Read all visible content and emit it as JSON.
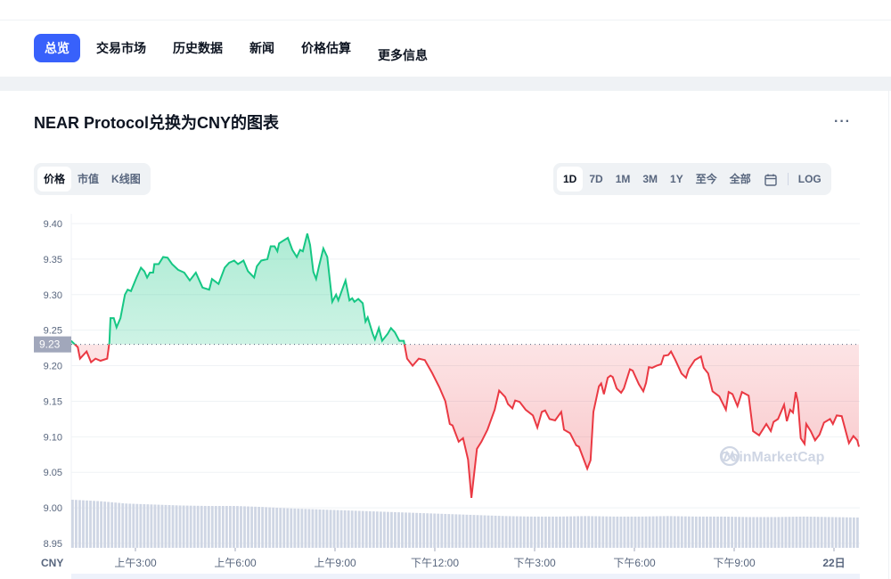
{
  "nav": {
    "tabs": [
      {
        "label": "总览",
        "active": true
      },
      {
        "label": "交易市场"
      },
      {
        "label": "历史数据"
      },
      {
        "label": "新闻"
      },
      {
        "label": "价格估算"
      },
      {
        "label": "更多信息"
      }
    ]
  },
  "card": {
    "title": "NEAR Protocol兑换为CNY的图表",
    "more_icon": "more-horizontal-icon"
  },
  "chart_type_tabs": [
    {
      "label": "价格",
      "active": true
    },
    {
      "label": "市值"
    },
    {
      "label": "K线图"
    }
  ],
  "range_tabs": [
    {
      "label": "1D",
      "active": true
    },
    {
      "label": "7D"
    },
    {
      "label": "1M"
    },
    {
      "label": "3M"
    },
    {
      "label": "1Y"
    },
    {
      "label": "至今"
    },
    {
      "label": "全部"
    }
  ],
  "calendar_icon": "calendar-icon",
  "log_label": "LOG",
  "colors": {
    "accent": "#3861fb",
    "up": "#16c784",
    "down": "#ea3943",
    "volume": "#cfd6e4"
  },
  "watermark": "CoinMarketCap",
  "chart_data": {
    "type": "line",
    "currency_label": "CNY",
    "baseline": {
      "value": 9.23,
      "label": "9.23"
    },
    "ylim": [
      8.95,
      9.4
    ],
    "yticks": [
      "9.40",
      "9.35",
      "9.30",
      "9.25",
      "9.20",
      "9.15",
      "9.10",
      "9.05",
      "9.00",
      "8.95"
    ],
    "xticks": [
      "上午3:00",
      "上午6:00",
      "上午9:00",
      "下午12:00",
      "下午3:00",
      "下午6:00",
      "下午9:00",
      "22日"
    ],
    "grid": true,
    "points": [
      [
        "01:04",
        9.235
      ],
      [
        "01:16",
        9.226
      ],
      [
        "01:20",
        9.21
      ],
      [
        "01:32",
        9.22
      ],
      [
        "01:40",
        9.205
      ],
      [
        "01:48",
        9.21
      ],
      [
        "01:57",
        9.207
      ],
      [
        "02:09",
        9.21
      ],
      [
        "02:13",
        9.233
      ],
      [
        "02:15",
        9.267
      ],
      [
        "02:21",
        9.267
      ],
      [
        "02:26",
        9.254
      ],
      [
        "02:33",
        9.267
      ],
      [
        "02:41",
        9.3
      ],
      [
        "02:46",
        9.307
      ],
      [
        "02:52",
        9.305
      ],
      [
        "03:02",
        9.324
      ],
      [
        "03:10",
        9.338
      ],
      [
        "03:16",
        9.333
      ],
      [
        "03:21",
        9.324
      ],
      [
        "03:26",
        9.331
      ],
      [
        "03:32",
        9.331
      ],
      [
        "03:34",
        9.343
      ],
      [
        "03:42",
        9.343
      ],
      [
        "03:50",
        9.353
      ],
      [
        "03:58",
        9.352
      ],
      [
        "04:06",
        9.343
      ],
      [
        "04:17",
        9.335
      ],
      [
        "04:28",
        9.331
      ],
      [
        "04:38",
        9.32
      ],
      [
        "04:49",
        9.331
      ],
      [
        "05:01",
        9.31
      ],
      [
        "05:13",
        9.307
      ],
      [
        "05:18",
        9.322
      ],
      [
        "05:30",
        9.315
      ],
      [
        "05:41",
        9.338
      ],
      [
        "05:49",
        9.345
      ],
      [
        "05:58",
        9.348
      ],
      [
        "06:05",
        9.343
      ],
      [
        "06:15",
        9.348
      ],
      [
        "06:23",
        9.333
      ],
      [
        "06:34",
        9.324
      ],
      [
        "06:39",
        9.34
      ],
      [
        "06:47",
        9.348
      ],
      [
        "06:58",
        9.35
      ],
      [
        "07:04",
        9.368
      ],
      [
        "07:11",
        9.368
      ],
      [
        "07:16",
        9.361
      ],
      [
        "07:19",
        9.372
      ],
      [
        "07:27",
        9.376
      ],
      [
        "07:35",
        9.38
      ],
      [
        "07:43",
        9.363
      ],
      [
        "07:51",
        9.353
      ],
      [
        "07:57",
        9.363
      ],
      [
        "08:02",
        9.361
      ],
      [
        "08:10",
        9.386
      ],
      [
        "08:15",
        9.37
      ],
      [
        "08:21",
        9.332
      ],
      [
        "08:26",
        9.322
      ],
      [
        "08:31",
        9.34
      ],
      [
        "08:39",
        9.365
      ],
      [
        "08:46",
        9.353
      ],
      [
        "08:55",
        9.29
      ],
      [
        "09:02",
        9.3
      ],
      [
        "09:06",
        9.292
      ],
      [
        "09:19",
        9.32
      ],
      [
        "09:26",
        9.292
      ],
      [
        "09:31",
        9.295
      ],
      [
        "09:35",
        9.29
      ],
      [
        "09:42",
        9.294
      ],
      [
        "09:50",
        9.288
      ],
      [
        "09:55",
        9.262
      ],
      [
        "09:59",
        9.268
      ],
      [
        "10:08",
        9.245
      ],
      [
        "10:12",
        9.237
      ],
      [
        "10:19",
        9.253
      ],
      [
        "10:25",
        9.235
      ],
      [
        "10:35",
        9.245
      ],
      [
        "10:41",
        9.253
      ],
      [
        "10:48",
        9.247
      ],
      [
        "10:56",
        9.235
      ],
      [
        "11:04",
        9.235
      ],
      [
        "11:10",
        9.21
      ],
      [
        "11:20",
        9.2
      ],
      [
        "11:31",
        9.21
      ],
      [
        "11:42",
        9.208
      ],
      [
        "11:55",
        9.19
      ],
      [
        "12:08",
        9.17
      ],
      [
        "12:19",
        9.15
      ],
      [
        "12:27",
        9.118
      ],
      [
        "12:32",
        9.116
      ],
      [
        "12:43",
        9.093
      ],
      [
        "12:51",
        9.098
      ],
      [
        "13:00",
        9.068
      ],
      [
        "13:06",
        9.014
      ],
      [
        "13:16",
        9.083
      ],
      [
        "13:24",
        9.093
      ],
      [
        "13:35",
        9.11
      ],
      [
        "13:48",
        9.138
      ],
      [
        "13:56",
        9.165
      ],
      [
        "14:07",
        9.156
      ],
      [
        "14:12",
        9.146
      ],
      [
        "14:20",
        9.14
      ],
      [
        "14:25",
        9.151
      ],
      [
        "14:33",
        9.149
      ],
      [
        "14:44",
        9.138
      ],
      [
        "14:57",
        9.13
      ],
      [
        "15:05",
        9.113
      ],
      [
        "15:13",
        9.135
      ],
      [
        "15:19",
        9.137
      ],
      [
        "15:27",
        9.125
      ],
      [
        "15:37",
        9.123
      ],
      [
        "15:48",
        9.135
      ],
      [
        "15:53",
        9.11
      ],
      [
        "16:04",
        9.105
      ],
      [
        "16:15",
        9.088
      ],
      [
        "16:20",
        9.086
      ],
      [
        "16:35",
        9.055
      ],
      [
        "16:41",
        9.067
      ],
      [
        "16:46",
        9.135
      ],
      [
        "16:56",
        9.171
      ],
      [
        "17:00",
        9.175
      ],
      [
        "17:05",
        9.16
      ],
      [
        "17:12",
        9.183
      ],
      [
        "17:17",
        9.186
      ],
      [
        "17:21",
        9.184
      ],
      [
        "17:28",
        9.168
      ],
      [
        "17:36",
        9.162
      ],
      [
        "17:41",
        9.168
      ],
      [
        "17:52",
        9.195
      ],
      [
        "17:57",
        9.193
      ],
      [
        "18:08",
        9.174
      ],
      [
        "18:16",
        9.164
      ],
      [
        "18:21",
        9.176
      ],
      [
        "18:26",
        9.198
      ],
      [
        "18:32",
        9.197
      ],
      [
        "18:40",
        9.2
      ],
      [
        "18:48",
        9.202
      ],
      [
        "18:53",
        9.214
      ],
      [
        "19:01",
        9.215
      ],
      [
        "19:06",
        9.22
      ],
      [
        "19:14",
        9.208
      ],
      [
        "19:25",
        9.189
      ],
      [
        "19:33",
        9.183
      ],
      [
        "19:38",
        9.195
      ],
      [
        "19:49",
        9.208
      ],
      [
        "20:00",
        9.213
      ],
      [
        "20:05",
        9.197
      ],
      [
        "20:13",
        9.189
      ],
      [
        "20:21",
        9.164
      ],
      [
        "20:33",
        9.157
      ],
      [
        "20:45",
        9.138
      ],
      [
        "20:50",
        9.163
      ],
      [
        "20:57",
        9.16
      ],
      [
        "21:06",
        9.143
      ],
      [
        "21:14",
        9.163
      ],
      [
        "21:26",
        9.158
      ],
      [
        "21:34",
        9.108
      ],
      [
        "21:45",
        9.102
      ],
      [
        "21:58",
        9.118
      ],
      [
        "22:06",
        9.108
      ],
      [
        "22:11",
        9.121
      ],
      [
        "22:19",
        9.125
      ],
      [
        "22:30",
        9.145
      ],
      [
        "22:35",
        9.122
      ],
      [
        "22:41",
        9.138
      ],
      [
        "22:46",
        9.134
      ],
      [
        "22:51",
        9.163
      ],
      [
        "22:55",
        9.148
      ],
      [
        "23:00",
        9.098
      ],
      [
        "23:07",
        9.09
      ],
      [
        "23:10",
        9.118
      ],
      [
        "23:18",
        9.108
      ],
      [
        "23:26",
        9.095
      ],
      [
        "23:34",
        9.103
      ],
      [
        "23:42",
        9.12
      ],
      [
        "23:53",
        9.125
      ],
      [
        "23:58",
        9.118
      ],
      [
        "22日 00:05",
        9.13
      ],
      [
        "22日 00:14",
        9.129
      ],
      [
        "22日 00:27",
        9.091
      ],
      [
        "22日 00:35",
        9.101
      ],
      [
        "22日 00:42",
        9.095
      ],
      [
        "22日 00:45",
        9.086
      ]
    ],
    "volume_relative": [
      1.0,
      0.97,
      0.92,
      0.9,
      0.88,
      0.87,
      0.87,
      0.85,
      0.82,
      0.8,
      0.78,
      0.76,
      0.74,
      0.72,
      0.7,
      0.68,
      0.66,
      0.65,
      0.65,
      0.66,
      0.65,
      0.65,
      0.66,
      0.65,
      0.65,
      0.64,
      0.64,
      0.65,
      0.64,
      0.63
    ]
  }
}
